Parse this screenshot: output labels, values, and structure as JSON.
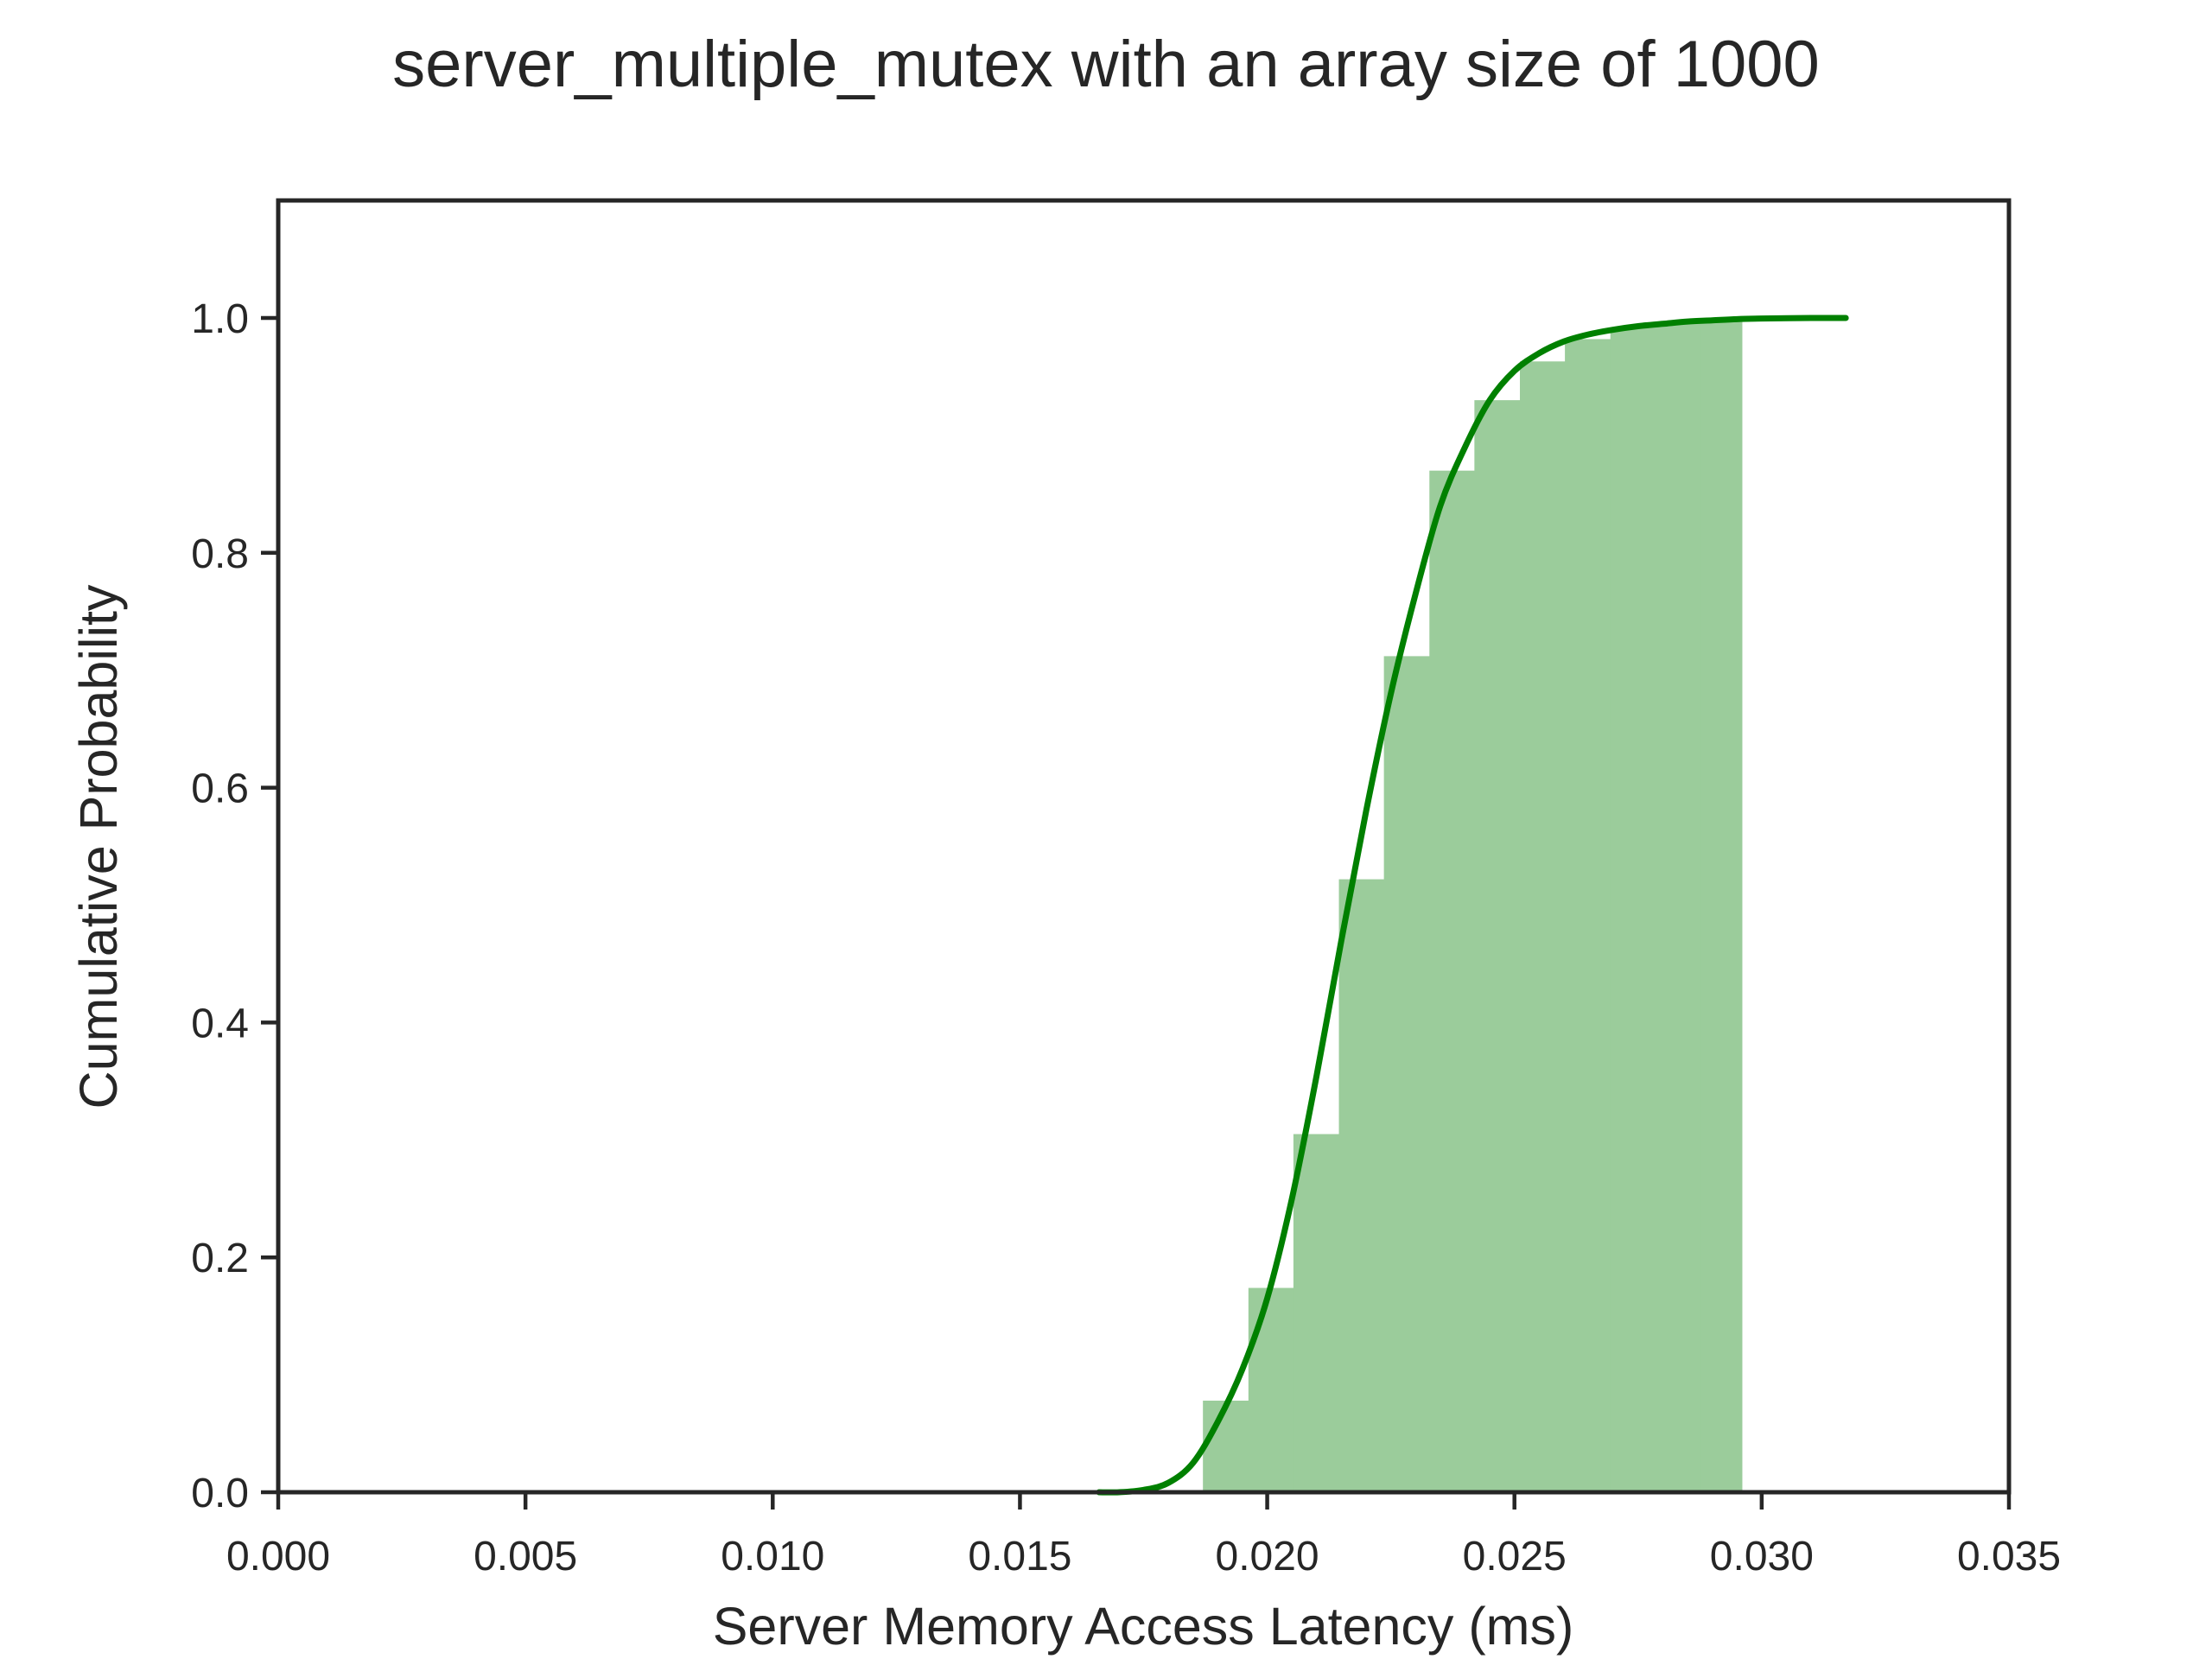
{
  "chart_data": {
    "type": "bar",
    "title": "server_multiple_mutex with an array size of 1000",
    "xlabel": "Server Memory Access Latency (ms)",
    "ylabel": "Cumulative Probability",
    "xlim": [
      0.0,
      0.035
    ],
    "ylim": [
      0.0,
      1.1
    ],
    "xticks": [
      "0.000",
      "0.005",
      "0.010",
      "0.015",
      "0.020",
      "0.025",
      "0.030",
      "0.035"
    ],
    "yticks": [
      "0.0",
      "0.2",
      "0.4",
      "0.6",
      "0.8",
      "1.0"
    ],
    "grid": false,
    "histogram": {
      "color": "#9bcc9b",
      "bins": [
        {
          "x0": 0.0187,
          "x1": 0.01962,
          "value": 0.078
        },
        {
          "x0": 0.01962,
          "x1": 0.02053,
          "value": 0.174
        },
        {
          "x0": 0.02053,
          "x1": 0.02145,
          "value": 0.305
        },
        {
          "x0": 0.02145,
          "x1": 0.02236,
          "value": 0.522
        },
        {
          "x0": 0.02236,
          "x1": 0.02328,
          "value": 0.712
        },
        {
          "x0": 0.02328,
          "x1": 0.02419,
          "value": 0.87
        },
        {
          "x0": 0.02419,
          "x1": 0.02511,
          "value": 0.93
        },
        {
          "x0": 0.02511,
          "x1": 0.02602,
          "value": 0.963
        },
        {
          "x0": 0.02602,
          "x1": 0.02694,
          "value": 0.982
        },
        {
          "x0": 0.02694,
          "x1": 0.02785,
          "value": 0.992
        },
        {
          "x0": 0.02785,
          "x1": 0.02877,
          "value": 0.997
        },
        {
          "x0": 0.02877,
          "x1": 0.0296,
          "value": 1.0
        }
      ]
    },
    "cdf_line": {
      "color": "#008000",
      "points": [
        [
          0.0166,
          0.0
        ],
        [
          0.017,
          0.0
        ],
        [
          0.0175,
          0.002
        ],
        [
          0.018,
          0.008
        ],
        [
          0.0185,
          0.025
        ],
        [
          0.019,
          0.06
        ],
        [
          0.0195,
          0.105
        ],
        [
          0.02,
          0.165
        ],
        [
          0.0205,
          0.25
        ],
        [
          0.021,
          0.355
        ],
        [
          0.0215,
          0.47
        ],
        [
          0.022,
          0.58
        ],
        [
          0.0225,
          0.68
        ],
        [
          0.023,
          0.765
        ],
        [
          0.0235,
          0.84
        ],
        [
          0.024,
          0.89
        ],
        [
          0.0245,
          0.93
        ],
        [
          0.025,
          0.955
        ],
        [
          0.0255,
          0.97
        ],
        [
          0.026,
          0.98
        ],
        [
          0.0265,
          0.986
        ],
        [
          0.027,
          0.99
        ],
        [
          0.0275,
          0.993
        ],
        [
          0.028,
          0.995
        ],
        [
          0.0285,
          0.997
        ],
        [
          0.029,
          0.998
        ],
        [
          0.0295,
          0.999
        ],
        [
          0.03,
          0.9995
        ],
        [
          0.031,
          1.0
        ],
        [
          0.0317,
          1.0
        ]
      ]
    }
  }
}
